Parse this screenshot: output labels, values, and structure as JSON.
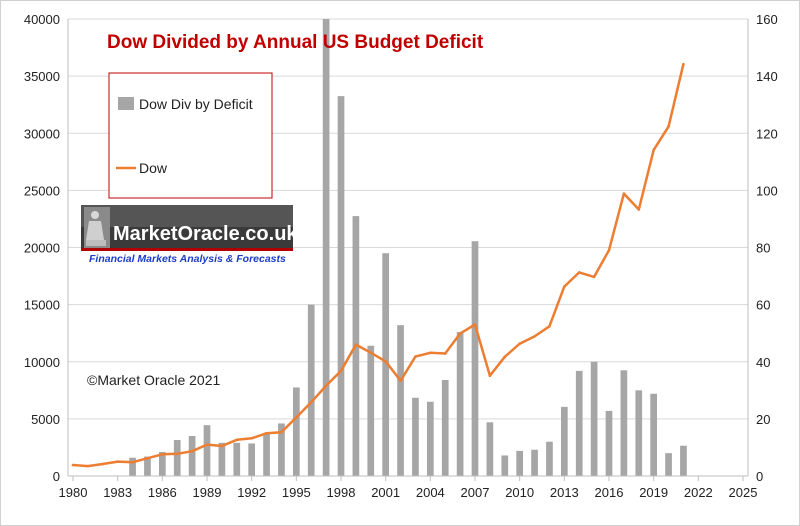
{
  "chart_data": {
    "type": "bar+line",
    "title": "Dow Divided by Annual US Budget Deficit",
    "xlabel": "",
    "ylabel": "",
    "xlim": [
      1980,
      2025
    ],
    "ylim_left": [
      0,
      40000
    ],
    "ylim_right": [
      0,
      160
    ],
    "x_ticks": [
      "1980",
      "1983",
      "1986",
      "1989",
      "1992",
      "1995",
      "1998",
      "2001",
      "2004",
      "2007",
      "2010",
      "2013",
      "2016",
      "2019",
      "2022",
      "2025"
    ],
    "y_left_ticks": [
      "0",
      "5000",
      "10000",
      "15000",
      "20000",
      "25000",
      "30000",
      "35000",
      "40000"
    ],
    "y_right_ticks": [
      "0",
      "20",
      "40",
      "60",
      "80",
      "100",
      "120",
      "140",
      "160"
    ],
    "grid": "horizontal",
    "legend_position": "top-left",
    "colors": {
      "bars": "#a6a6a6",
      "line": "#ed7d31",
      "title": "#c00000",
      "grid": "#d9d9d9"
    },
    "series": [
      {
        "name": "Dow Div by Deficit",
        "type": "bar",
        "axis": "right",
        "x": [
          1984,
          1985,
          1986,
          1987,
          1988,
          1989,
          1990,
          1991,
          1992,
          1993,
          1994,
          1995,
          1996,
          1997,
          1998,
          1999,
          2000,
          2001,
          2002,
          2003,
          2004,
          2005,
          2006,
          2007,
          2008,
          2009,
          2010,
          2011,
          2012,
          2013,
          2014,
          2015,
          2016,
          2017,
          2018,
          2019,
          2020,
          2021
        ],
        "values": [
          6.4,
          6.8,
          8.4,
          12.6,
          14,
          17.8,
          11.6,
          11.6,
          11.4,
          14.8,
          18.4,
          31,
          60,
          160,
          133,
          91,
          45.6,
          78,
          52.8,
          27.4,
          26,
          33.6,
          50.4,
          82.2,
          18.8,
          7.2,
          8.8,
          9.2,
          12,
          24.2,
          36.8,
          40,
          22.8,
          37,
          30,
          28.8,
          8,
          10.6
        ]
      },
      {
        "name": "Dow",
        "type": "line",
        "axis": "left",
        "x": [
          1980,
          1981,
          1982,
          1983,
          1984,
          1985,
          1986,
          1987,
          1988,
          1989,
          1990,
          1991,
          1992,
          1993,
          1994,
          1995,
          1996,
          1997,
          1998,
          1999,
          2000,
          2001,
          2002,
          2003,
          2004,
          2005,
          2006,
          2007,
          2008,
          2009,
          2010,
          2011,
          2012,
          2013,
          2014,
          2015,
          2016,
          2017,
          2018,
          2019,
          2020,
          2021
        ],
        "values": [
          960,
          870,
          1050,
          1260,
          1210,
          1550,
          1900,
          1940,
          2170,
          2750,
          2630,
          3170,
          3300,
          3750,
          3830,
          5120,
          6450,
          7900,
          9200,
          11500,
          10790,
          10020,
          8340,
          10450,
          10780,
          10720,
          12460,
          13260,
          8780,
          10430,
          11580,
          12220,
          13100,
          16580,
          17820,
          17430,
          19760,
          24720,
          23330,
          28540,
          30600,
          36050
        ]
      }
    ]
  },
  "legend": {
    "bars_label": "Dow Div by Deficit",
    "line_label": "Dow"
  },
  "logo": {
    "name": "MarketOracle.co.uk",
    "tagline": "Financial Markets Analysis & Forecasts"
  },
  "copyright": "©Market Oracle 2021"
}
